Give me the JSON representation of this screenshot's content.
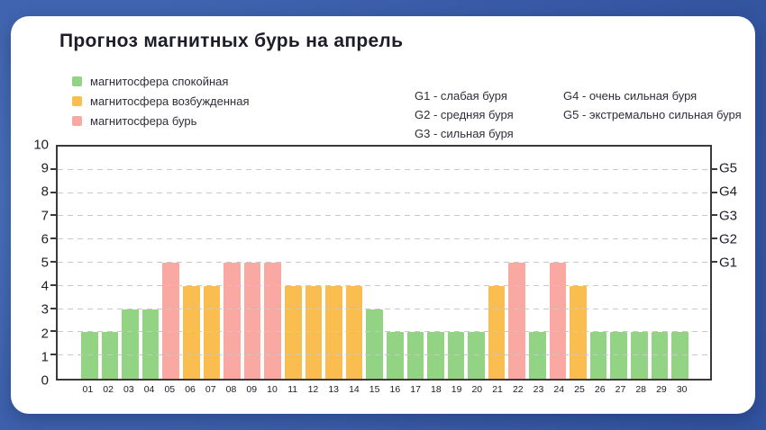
{
  "title": "Прогноз магнитных бурь на апрель",
  "legend": {
    "items": [
      {
        "label": "магнитосфера спокойная",
        "state": "quiet"
      },
      {
        "label": "магнитосфера возбужденная",
        "state": "excited"
      },
      {
        "label": "магнитосфера бурь",
        "state": "storm"
      }
    ]
  },
  "g_info": {
    "items": [
      {
        "text": "G1 - слабая буря"
      },
      {
        "text": "G2 - средняя буря"
      },
      {
        "text": "G3 - сильная буря"
      },
      {
        "text": "G4 - очень сильная буря"
      },
      {
        "text": "G5 - экстремально сильная буря"
      }
    ]
  },
  "colors": {
    "quiet": "#93d384",
    "excited": "#f9bd50",
    "storm": "#f9a9a1",
    "axis": "#3a3a3a",
    "grid": "#c8c8c8",
    "card": "#ffffff",
    "text": "#1d1d29",
    "background": "#3a5ca8"
  },
  "chart_data": {
    "type": "bar",
    "title": "Прогноз магнитных бурь на апрель",
    "x": [
      "01",
      "02",
      "03",
      "04",
      "05",
      "06",
      "07",
      "08",
      "09",
      "10",
      "11",
      "12",
      "13",
      "14",
      "15",
      "16",
      "17",
      "18",
      "19",
      "20",
      "21",
      "22",
      "23",
      "24",
      "25",
      "26",
      "27",
      "28",
      "29",
      "30"
    ],
    "values": [
      2,
      2,
      3,
      3,
      5,
      4,
      4,
      5,
      5,
      5,
      4,
      4,
      4,
      4,
      3,
      2,
      2,
      2,
      2,
      2,
      4,
      5,
      2,
      5,
      4,
      2,
      2,
      2,
      2,
      2
    ],
    "states": [
      "quiet",
      "quiet",
      "quiet",
      "quiet",
      "storm",
      "excited",
      "excited",
      "storm",
      "storm",
      "storm",
      "excited",
      "excited",
      "excited",
      "excited",
      "quiet",
      "quiet",
      "quiet",
      "quiet",
      "quiet",
      "quiet",
      "excited",
      "storm",
      "quiet",
      "storm",
      "excited",
      "quiet",
      "quiet",
      "quiet",
      "quiet",
      "quiet"
    ],
    "xlabel": "",
    "ylabel": "",
    "ylim": [
      0,
      10
    ],
    "yticks": [
      0,
      1,
      2,
      3,
      4,
      5,
      6,
      7,
      8,
      9,
      10
    ],
    "right_labels": [
      {
        "text": "G5",
        "level": 9
      },
      {
        "text": "G4",
        "level": 8
      },
      {
        "text": "G3",
        "level": 7
      },
      {
        "text": "G2",
        "level": 6
      },
      {
        "text": "G1",
        "level": 5
      }
    ],
    "grid": "horizontal-dashed",
    "legend_position": "top-left"
  }
}
